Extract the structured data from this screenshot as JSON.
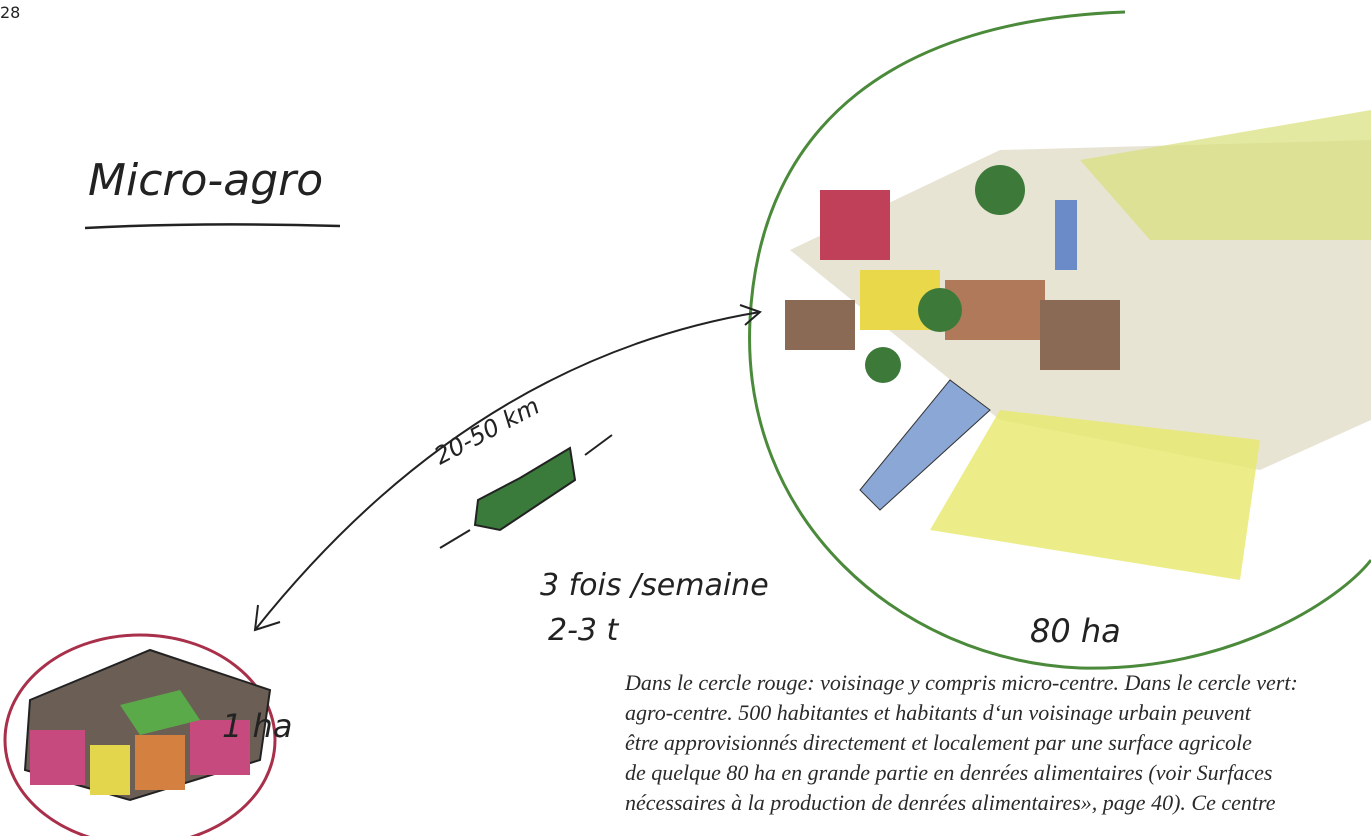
{
  "page_number": "28",
  "title": "Micro-agro",
  "labels": {
    "distance": "20-50 km",
    "frequency": "3 fois /semaine",
    "load": "2-3 t",
    "agro_area": "80 ha",
    "micro_area": "1 ha"
  },
  "caption": {
    "lines": [
      "Dans le cercle rouge: voisinage y compris micro-centre. Dans le cercle vert:",
      "agro-centre. 500 habitantes et habitants d‘un voisinage urbain peuvent",
      "être approvisionnés directement et localement par une surface agricole",
      "de quelque 80 ha en grande partie en denrées alimentaires (voir Surfaces",
      "nécessaires à la production de denrées alimentaires», page 40). Ce centre"
    ]
  }
}
